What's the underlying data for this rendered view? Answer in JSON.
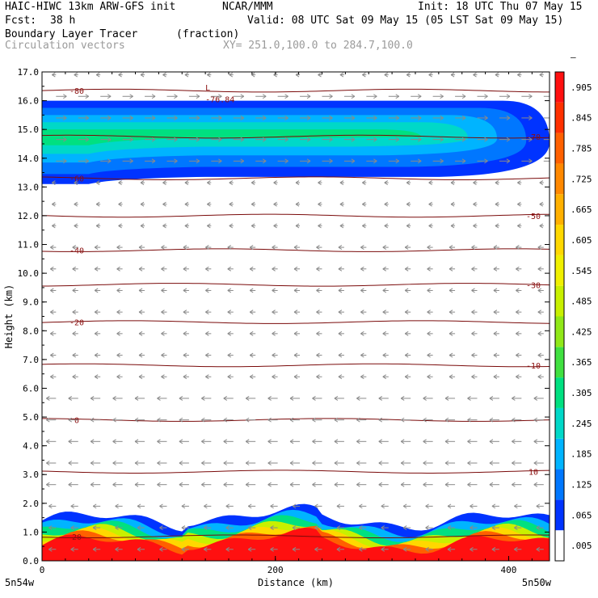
{
  "header": {
    "model": "HAIC-HIWC 13km ARW-GFS init",
    "org": "NCAR/MMM",
    "init": "Init: 18 UTC Thu 07 May 15",
    "fcst_label": "Fcst:",
    "fcst_value": "38 h",
    "valid": "Valid: 08 UTC Sat 09 May 15 (05 LST Sat 09 May 15)",
    "field": "Boundary Layer Tracer",
    "field_units": "(fraction)",
    "overlay": "Circulation vectors",
    "xy": "XY= 251.0,100.0 to 284.7,100.0"
  },
  "chart_data": {
    "type": "heatmap",
    "title": "Boundary Layer Tracer",
    "xlabel": "Distance (km)",
    "ylabel": "Height (km)",
    "xlim": [
      0,
      435
    ],
    "ylim": [
      0,
      17
    ],
    "x_ticks": [
      "0",
      "200",
      "400"
    ],
    "x_end_labels": {
      "left": "5n54w",
      "right": "5n50w"
    },
    "y_ticks": [
      "0.0",
      "1.0",
      "2.0",
      "3.0",
      "4.0",
      "5.0",
      "6.0",
      "7.0",
      "8.0",
      "9.0",
      "10.0",
      "11.0",
      "12.0",
      "13.0",
      "14.0",
      "15.0",
      "16.0",
      "17.0"
    ],
    "colorbar": {
      "labels": [
        ".005",
        ".065",
        ".125",
        ".185",
        ".245",
        ".305",
        ".365",
        ".425",
        ".485",
        ".545",
        ".605",
        ".665",
        ".725",
        ".785",
        ".845",
        ".905",
        "–"
      ],
      "colors": [
        "#ffffff",
        "#0033ff",
        "#0077ff",
        "#00b4ff",
        "#00d8c8",
        "#00e080",
        "#40e040",
        "#90e818",
        "#c8f000",
        "#f0f000",
        "#ffd800",
        "#ffb000",
        "#ff8800",
        "#ff6000",
        "#ff3000",
        "#ff1010"
      ]
    },
    "contours": [
      {
        "label": "-80",
        "z": 16.35
      },
      {
        "label": "-70",
        "z": 14.75
      },
      {
        "label": "-60",
        "z": 13.3
      },
      {
        "label": "-50",
        "z": 12.0
      },
      {
        "label": "-40",
        "z": 10.8
      },
      {
        "label": "-30",
        "z": 9.6
      },
      {
        "label": "-20",
        "z": 8.3
      },
      {
        "label": "-10",
        "z": 6.8
      },
      {
        "label": "0",
        "z": 4.9
      },
      {
        "label": "10",
        "z": 3.1
      },
      {
        "label": "20",
        "z": 0.85
      }
    ],
    "annotation": {
      "text": "L",
      "sub": "-76.84"
    },
    "tracer_layers": [
      {
        "name": "upper",
        "bottom": 13.1,
        "top": 16.0
      },
      {
        "name": "boundary",
        "bottom": 0.0,
        "top": 1.6
      }
    ]
  }
}
